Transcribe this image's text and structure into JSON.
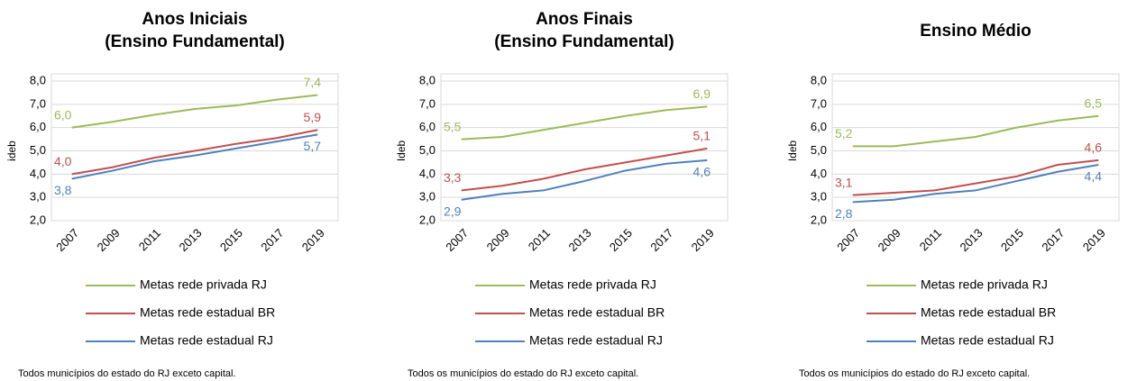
{
  "chart_data": [
    {
      "type": "line",
      "title": [
        "Anos Iniciais",
        "(Ensino Fundamental)"
      ],
      "ylabel": "ideb",
      "categories": [
        "2007",
        "2009",
        "2011",
        "2013",
        "2015",
        "2017",
        "2019"
      ],
      "ylim": [
        2,
        8
      ],
      "yticks": [
        {
          "value": 2,
          "label": "2,0"
        },
        {
          "value": 3,
          "label": "3,0"
        },
        {
          "value": 4,
          "label": "4,0"
        },
        {
          "value": 5,
          "label": "5,0"
        },
        {
          "value": 6,
          "label": "6,0"
        },
        {
          "value": 7,
          "label": "7,0"
        },
        {
          "value": 8,
          "label": "8,0"
        }
      ],
      "grid": true,
      "series": [
        {
          "name": "Metas rede privada RJ",
          "color": "#9bbb59",
          "values": [
            6.0,
            6.25,
            6.55,
            6.8,
            6.95,
            7.2,
            7.4
          ],
          "value_labels": [
            "6,0",
            null,
            null,
            null,
            null,
            null,
            "7,4"
          ]
        },
        {
          "name": "Metas rede estadual BR",
          "color": "#c0504d",
          "values": [
            4.0,
            4.3,
            4.7,
            5.0,
            5.3,
            5.55,
            5.9
          ],
          "value_labels": [
            "4,0",
            null,
            null,
            null,
            null,
            null,
            "5,9"
          ]
        },
        {
          "name": "Metas rede estadual RJ",
          "color": "#4f81bd",
          "values": [
            3.8,
            4.15,
            4.55,
            4.8,
            5.1,
            5.4,
            5.7
          ],
          "value_labels": [
            "3,8",
            null,
            null,
            null,
            null,
            null,
            "5,7"
          ]
        }
      ],
      "note": "Todos municípios do estado do RJ exceto capital."
    },
    {
      "type": "line",
      "title": [
        "Anos Finais",
        "(Ensino Fundamental)"
      ],
      "ylabel": "Ideb",
      "categories": [
        "2007",
        "2009",
        "2011",
        "2013",
        "2015",
        "2017",
        "2019"
      ],
      "ylim": [
        2,
        8
      ],
      "yticks": [
        {
          "value": 2,
          "label": "2,0"
        },
        {
          "value": 3,
          "label": "3,0"
        },
        {
          "value": 4,
          "label": "4,0"
        },
        {
          "value": 5,
          "label": "5,0"
        },
        {
          "value": 6,
          "label": "6,0"
        },
        {
          "value": 7,
          "label": "7,0"
        },
        {
          "value": 8,
          "label": "8,0"
        }
      ],
      "grid": true,
      "series": [
        {
          "name": "Metas rede privada RJ",
          "color": "#9bbb59",
          "values": [
            5.5,
            5.6,
            5.9,
            6.2,
            6.5,
            6.75,
            6.9
          ],
          "value_labels": [
            "5,5",
            null,
            null,
            null,
            null,
            null,
            "6,9"
          ]
        },
        {
          "name": "Metas rede estadual BR",
          "color": "#c0504d",
          "values": [
            3.3,
            3.5,
            3.8,
            4.2,
            4.5,
            4.8,
            5.1
          ],
          "value_labels": [
            "3,3",
            null,
            null,
            null,
            null,
            null,
            "5,1"
          ]
        },
        {
          "name": "Metas rede estadual RJ",
          "color": "#4f81bd",
          "values": [
            2.9,
            3.15,
            3.3,
            3.7,
            4.15,
            4.45,
            4.6
          ],
          "value_labels": [
            "2,9",
            null,
            null,
            null,
            null,
            null,
            "4,6"
          ]
        }
      ],
      "note": "Todos os municípios do estado do RJ exceto capital."
    },
    {
      "type": "line",
      "title": [
        "Ensino Médio"
      ],
      "ylabel": "Ideb",
      "categories": [
        "2007",
        "2009",
        "2011",
        "2013",
        "2015",
        "2017",
        "2019"
      ],
      "ylim": [
        2,
        8
      ],
      "yticks": [
        {
          "value": 2,
          "label": "2,0"
        },
        {
          "value": 3,
          "label": "3,0"
        },
        {
          "value": 4,
          "label": "4,0"
        },
        {
          "value": 5,
          "label": "5,0"
        },
        {
          "value": 6,
          "label": "6,0"
        },
        {
          "value": 7,
          "label": "7,0"
        },
        {
          "value": 8,
          "label": "8,0"
        }
      ],
      "grid": true,
      "series": [
        {
          "name": "Metas rede privada RJ",
          "color": "#9bbb59",
          "values": [
            5.2,
            5.2,
            5.4,
            5.6,
            6.0,
            6.3,
            6.5
          ],
          "value_labels": [
            "5,2",
            null,
            null,
            null,
            null,
            null,
            "6,5"
          ]
        },
        {
          "name": "Metas rede estadual BR",
          "color": "#c0504d",
          "values": [
            3.1,
            3.2,
            3.3,
            3.6,
            3.9,
            4.4,
            4.6
          ],
          "value_labels": [
            "3,1",
            null,
            null,
            null,
            null,
            null,
            "4,6"
          ]
        },
        {
          "name": "Metas rede estadual RJ",
          "color": "#4f81bd",
          "values": [
            2.8,
            2.9,
            3.15,
            3.3,
            3.7,
            4.1,
            4.4
          ],
          "value_labels": [
            "2,8",
            null,
            null,
            null,
            null,
            null,
            "4,4"
          ]
        }
      ],
      "note": "Todos os municípios do estado do RJ exceto capital."
    }
  ]
}
